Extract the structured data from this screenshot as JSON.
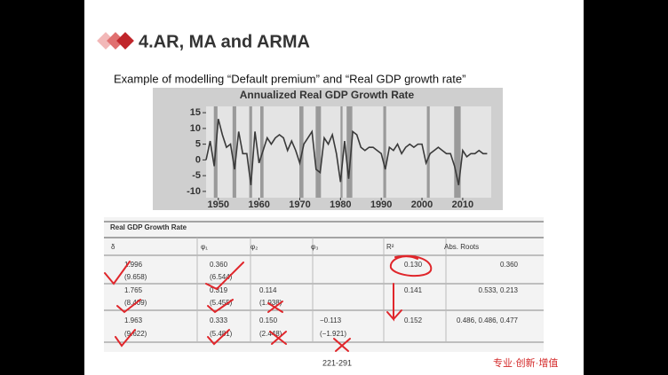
{
  "header": {
    "title": "4.AR, MA and ARMA",
    "subtitle": "Example of modelling “Default premium” and “Real GDP growth rate”"
  },
  "chart_data": {
    "type": "line",
    "title": "Annualized Real GDP Growth Rate",
    "color": "#3a3a3a",
    "x": [
      1947,
      1948,
      1949,
      1950,
      1951,
      1952,
      1953,
      1954,
      1955,
      1956,
      1957,
      1958,
      1959,
      1960,
      1961,
      1962,
      1963,
      1964,
      1965,
      1966,
      1967,
      1968,
      1969,
      1970,
      1971,
      1972,
      1973,
      1974,
      1975,
      1976,
      1977,
      1978,
      1979,
      1980,
      1981,
      1982,
      1983,
      1984,
      1985,
      1986,
      1987,
      1988,
      1989,
      1990,
      1991,
      1992,
      1993,
      1994,
      1995,
      1996,
      1997,
      1998,
      1999,
      2000,
      2001,
      2002,
      2003,
      2004,
      2005,
      2006,
      2007,
      2008,
      2009,
      2010,
      2011,
      2012,
      2013,
      2014,
      2015,
      2016
    ],
    "values": [
      0,
      6,
      -2,
      13,
      8,
      4,
      5,
      -3,
      9,
      2,
      2,
      -8,
      9,
      -1,
      3,
      7,
      5,
      7,
      8,
      7,
      3,
      6,
      3,
      -1,
      5,
      7,
      9,
      -3,
      -4,
      7,
      5,
      8,
      2,
      -7,
      6,
      -6,
      9,
      8,
      4,
      3,
      4,
      4,
      3,
      2,
      -3,
      4,
      3,
      5,
      2,
      4,
      5,
      4,
      5,
      5,
      -1,
      2,
      3,
      4,
      3,
      2,
      2,
      -2,
      -8,
      3,
      1,
      2,
      2,
      3,
      2,
      2
    ],
    "recessions": [
      [
        1948.9,
        1949.8
      ],
      [
        1953.5,
        1954.4
      ],
      [
        1957.6,
        1958.3
      ],
      [
        1960.3,
        1961.1
      ],
      [
        1969.9,
        1970.9
      ],
      [
        1973.9,
        1975.2
      ],
      [
        1980,
        1980.5
      ],
      [
        1981.5,
        1982.9
      ],
      [
        1990.5,
        1991.2
      ],
      [
        2001.2,
        2001.9
      ],
      [
        2007.9,
        2009.5
      ]
    ],
    "xlim": [
      1947,
      2017
    ],
    "xticks": [
      1950,
      1960,
      1970,
      1980,
      1990,
      2000,
      2010
    ],
    "ylim": [
      -12,
      17
    ],
    "yticks": [
      -10,
      -5,
      0,
      5,
      10,
      15
    ]
  },
  "table": {
    "title": "Real GDP Growth Rate",
    "headers": [
      "δ",
      "φ₁",
      "φ₂",
      "φ₃",
      "R²",
      "Abs. Roots"
    ],
    "rows": [
      [
        "1.996",
        "0.360",
        null,
        null,
        "0.130",
        "0.360"
      ],
      [
        "(9.658)",
        "(6.544)",
        null,
        null,
        null,
        null
      ],
      [
        "1.765",
        "0.319",
        "0.114",
        null,
        "0.141",
        "0.533, 0.213"
      ],
      [
        "(8.409)",
        "(5.455)",
        "(1.938)",
        null,
        null,
        null
      ],
      [
        "1.963",
        "0.333",
        "0.150",
        "−0.113",
        "0.152",
        "0.486, 0.486, 0.477"
      ],
      [
        "(9.622)",
        "(5.481)",
        "(2.448)",
        "(−1.921)",
        null,
        null
      ]
    ]
  },
  "footer": {
    "page": "221-291",
    "slogan": "专业·创新·增值"
  }
}
